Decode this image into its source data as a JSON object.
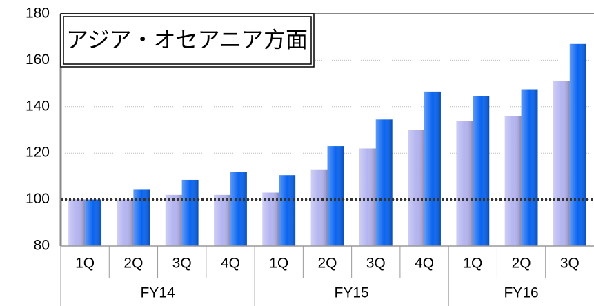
{
  "chart_data": {
    "type": "bar",
    "title": "アジア・オセアニア方面",
    "category_groups": [
      {
        "name": "FY14",
        "categories": [
          "1Q",
          "2Q",
          "3Q",
          "4Q"
        ]
      },
      {
        "name": "FY15",
        "categories": [
          "1Q",
          "2Q",
          "3Q",
          "4Q"
        ]
      },
      {
        "name": "FY16",
        "categories": [
          "1Q",
          "2Q",
          "3Q"
        ]
      }
    ],
    "series": [
      {
        "color": "#b4b4f0",
        "values": [
          100,
          100,
          102,
          102,
          103,
          113,
          122,
          130,
          134,
          136,
          151
        ]
      },
      {
        "color": "#0a64f0",
        "values": [
          100,
          104.5,
          108.5,
          112,
          110.5,
          123,
          134.5,
          146.5,
          144.5,
          147.5,
          167
        ]
      }
    ],
    "reference_line": 100,
    "ylim": [
      80,
      180
    ],
    "yticks": [
      80,
      100,
      120,
      140,
      160,
      180
    ],
    "grid": true
  }
}
